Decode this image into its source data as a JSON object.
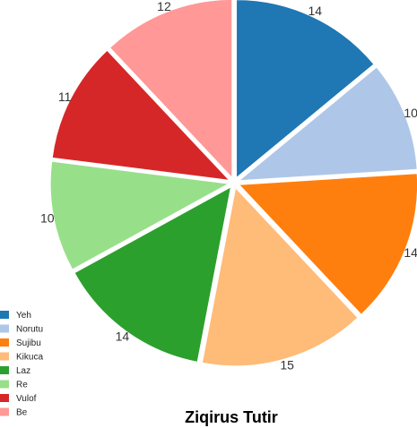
{
  "chart_data": {
    "type": "pie",
    "title": "Ziqirus Tutir",
    "exploded": true,
    "legend_position": "bottom-left",
    "slices": [
      {
        "name": "Yeh",
        "value": 14,
        "color": "#1f77b4"
      },
      {
        "name": "Norutu",
        "value": 10,
        "color": "#aec7e8"
      },
      {
        "name": "Sujibu",
        "value": 14,
        "color": "#ff7f0e"
      },
      {
        "name": "Kikuca",
        "value": 15,
        "color": "#ffbb78"
      },
      {
        "name": "Laz",
        "value": 14,
        "color": "#2ca02c"
      },
      {
        "name": "Re",
        "value": 10,
        "color": "#98df8a"
      },
      {
        "name": "Vulof",
        "value": 11,
        "color": "#d62728"
      },
      {
        "name": "Be",
        "value": 12,
        "color": "#ff9896"
      }
    ]
  }
}
